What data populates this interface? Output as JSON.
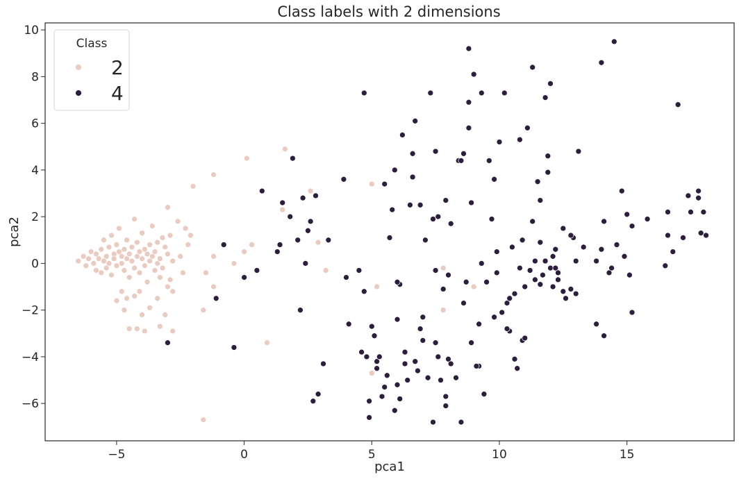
{
  "chart_data": {
    "type": "scatter",
    "title": "Class labels with 2 dimensions",
    "xlabel": "pca1",
    "ylabel": "pca2",
    "xlim": [
      -7.8,
      19.2
    ],
    "ylim": [
      -7.6,
      10.3
    ],
    "xticks": [
      -5,
      0,
      5,
      10,
      15
    ],
    "yticks": [
      -6,
      -4,
      -2,
      0,
      2,
      4,
      6,
      8,
      10
    ],
    "grid": false,
    "legend": {
      "title": "Class",
      "placement": "top-left"
    },
    "series": [
      {
        "name": "2",
        "color": "#ebcbc0",
        "points": [
          [
            -6.5,
            0.1
          ],
          [
            -6.3,
            0.3
          ],
          [
            -6.2,
            -0.1
          ],
          [
            -6.1,
            0.2
          ],
          [
            -6.0,
            0.5
          ],
          [
            -5.9,
            0.0
          ],
          [
            -5.8,
            0.4
          ],
          [
            -5.8,
            -0.3
          ],
          [
            -5.7,
            0.2
          ],
          [
            -5.6,
            0.6
          ],
          [
            -5.6,
            -0.4
          ],
          [
            -5.5,
            0.1
          ],
          [
            -5.5,
            1.0
          ],
          [
            -5.4,
            0.3
          ],
          [
            -5.4,
            -0.2
          ],
          [
            -5.3,
            0.7
          ],
          [
            -5.3,
            0.0
          ],
          [
            -5.2,
            1.2
          ],
          [
            -5.2,
            -0.5
          ],
          [
            -5.1,
            0.4
          ],
          [
            -5.1,
            0.2
          ],
          [
            -5.0,
            0.8
          ],
          [
            -5.0,
            -0.1
          ],
          [
            -4.9,
            0.5
          ],
          [
            -4.9,
            1.5
          ],
          [
            -4.8,
            0.0
          ],
          [
            -4.8,
            0.3
          ],
          [
            -4.7,
            0.6
          ],
          [
            -4.7,
            -0.3
          ],
          [
            -4.6,
            0.2
          ],
          [
            -4.6,
            1.0
          ],
          [
            -4.5,
            0.4
          ],
          [
            -4.5,
            -0.6
          ],
          [
            -4.4,
            0.7
          ],
          [
            -4.4,
            0.1
          ],
          [
            -4.3,
            1.9
          ],
          [
            -4.3,
            -0.2
          ],
          [
            -4.2,
            0.3
          ],
          [
            -4.2,
            0.9
          ],
          [
            -4.1,
            0.5
          ],
          [
            -4.1,
            -0.4
          ],
          [
            -4.0,
            0.2
          ],
          [
            -4.0,
            1.3
          ],
          [
            -3.9,
            0.6
          ],
          [
            -3.9,
            -0.1
          ],
          [
            -3.8,
            0.4
          ],
          [
            -3.8,
            -0.8
          ],
          [
            -3.7,
            0.8
          ],
          [
            -3.7,
            0.1
          ],
          [
            -3.6,
            0.3
          ],
          [
            -3.6,
            1.6
          ],
          [
            -3.5,
            -0.3
          ],
          [
            -3.5,
            0.5
          ],
          [
            -3.4,
            0.0
          ],
          [
            -3.4,
            0.9
          ],
          [
            -3.3,
            -0.6
          ],
          [
            -3.3,
            0.2
          ],
          [
            -3.2,
            1.1
          ],
          [
            -3.2,
            -0.2
          ],
          [
            -3.1,
            0.7
          ],
          [
            -3.0,
            2.4
          ],
          [
            -3.0,
            0.4
          ],
          [
            -2.9,
            -0.7
          ],
          [
            -2.9,
            1.2
          ],
          [
            -2.8,
            0.1
          ],
          [
            -2.8,
            -1.2
          ],
          [
            -2.6,
            1.8
          ],
          [
            -2.5,
            0.3
          ],
          [
            -2.4,
            -0.4
          ],
          [
            -2.3,
            1.5
          ],
          [
            -2.2,
            0.8
          ],
          [
            -2.1,
            1.2
          ],
          [
            -4.6,
            -1.5
          ],
          [
            -4.5,
            -2.8
          ],
          [
            -4.2,
            -2.8
          ],
          [
            -3.9,
            -2.9
          ],
          [
            -4.8,
            -1.2
          ],
          [
            -4.7,
            -2.0
          ],
          [
            -4.3,
            -1.4
          ],
          [
            -4.1,
            -1.2
          ],
          [
            -3.7,
            -1.9
          ],
          [
            -3.4,
            -1.5
          ],
          [
            -3.3,
            -2.7
          ],
          [
            -3.1,
            -2.2
          ],
          [
            -2.8,
            -2.9
          ],
          [
            -3.0,
            -1.0
          ],
          [
            -5.0,
            -1.6
          ],
          [
            -4.0,
            -2.2
          ],
          [
            -2.0,
            3.3
          ],
          [
            -1.6,
            -2.0
          ],
          [
            -1.6,
            -6.7
          ],
          [
            -1.5,
            -0.4
          ],
          [
            -1.2,
            3.8
          ],
          [
            -1.2,
            0.3
          ],
          [
            -1.2,
            -1.0
          ],
          [
            -0.4,
            0.0
          ],
          [
            0.0,
            0.5
          ],
          [
            0.1,
            4.5
          ],
          [
            0.3,
            0.8
          ],
          [
            0.9,
            -3.4
          ],
          [
            1.5,
            2.3
          ],
          [
            1.6,
            4.9
          ],
          [
            2.6,
            3.1
          ],
          [
            2.9,
            0.9
          ],
          [
            3.2,
            -0.3
          ],
          [
            5.0,
            3.4
          ],
          [
            5.2,
            -1.0
          ],
          [
            5.0,
            -4.7
          ],
          [
            7.8,
            -0.2
          ],
          [
            7.8,
            -2.0
          ],
          [
            9.0,
            -1.0
          ]
        ]
      },
      {
        "name": "4",
        "color": "#2d1e3e",
        "points": [
          [
            -3.0,
            -3.4
          ],
          [
            -1.1,
            -1.5
          ],
          [
            -0.8,
            0.8
          ],
          [
            -0.4,
            -3.6
          ],
          [
            0.0,
            -0.6
          ],
          [
            0.5,
            -0.3
          ],
          [
            0.7,
            3.1
          ],
          [
            1.3,
            0.5
          ],
          [
            1.4,
            0.8
          ],
          [
            1.5,
            2.6
          ],
          [
            1.8,
            2.0
          ],
          [
            1.9,
            4.5
          ],
          [
            2.1,
            1.0
          ],
          [
            2.2,
            -2.0
          ],
          [
            2.3,
            2.8
          ],
          [
            2.4,
            0.0
          ],
          [
            2.5,
            1.4
          ],
          [
            2.6,
            1.8
          ],
          [
            2.7,
            -5.9
          ],
          [
            2.8,
            2.9
          ],
          [
            2.9,
            -5.6
          ],
          [
            3.1,
            -4.3
          ],
          [
            3.3,
            1.0
          ],
          [
            3.9,
            3.6
          ],
          [
            4.0,
            -0.6
          ],
          [
            4.1,
            -2.6
          ],
          [
            4.5,
            -0.3
          ],
          [
            4.6,
            -3.8
          ],
          [
            4.7,
            -1.2
          ],
          [
            4.7,
            7.3
          ],
          [
            4.8,
            -4.0
          ],
          [
            4.9,
            -6.6
          ],
          [
            5.0,
            -2.7
          ],
          [
            5.2,
            -4.2
          ],
          [
            5.4,
            -5.7
          ],
          [
            5.5,
            3.4
          ],
          [
            5.6,
            -4.8
          ],
          [
            5.8,
            2.3
          ],
          [
            5.9,
            4.0
          ],
          [
            6.0,
            -5.2
          ],
          [
            6.1,
            -0.9
          ],
          [
            6.2,
            5.5
          ],
          [
            6.3,
            -3.8
          ],
          [
            6.5,
            2.5
          ],
          [
            6.6,
            4.7
          ],
          [
            6.7,
            6.1
          ],
          [
            6.8,
            -4.6
          ],
          [
            6.9,
            -2.8
          ],
          [
            7.0,
            -3.3
          ],
          [
            7.1,
            1.0
          ],
          [
            7.2,
            -4.9
          ],
          [
            7.3,
            7.3
          ],
          [
            7.4,
            1.9
          ],
          [
            7.5,
            4.8
          ],
          [
            7.6,
            2.0
          ],
          [
            7.7,
            -5.0
          ],
          [
            7.8,
            -1.1
          ],
          [
            7.9,
            2.7
          ],
          [
            8.0,
            -4.1
          ],
          [
            8.1,
            1.7
          ],
          [
            8.3,
            -4.9
          ],
          [
            8.4,
            4.4
          ],
          [
            8.5,
            -6.8
          ],
          [
            8.6,
            4.7
          ],
          [
            8.7,
            -0.8
          ],
          [
            8.8,
            5.8
          ],
          [
            8.8,
            9.2
          ],
          [
            8.9,
            2.6
          ],
          [
            9.0,
            8.1
          ],
          [
            9.2,
            -2.6
          ],
          [
            9.3,
            7.3
          ],
          [
            9.4,
            -5.6
          ],
          [
            9.5,
            -0.8
          ],
          [
            9.6,
            4.4
          ],
          [
            9.7,
            1.9
          ],
          [
            9.8,
            -2.3
          ],
          [
            9.9,
            0.5
          ],
          [
            10.0,
            5.2
          ],
          [
            10.1,
            -2.1
          ],
          [
            10.2,
            7.3
          ],
          [
            10.3,
            -1.7
          ],
          [
            10.4,
            -2.9
          ],
          [
            10.5,
            0.7
          ],
          [
            10.6,
            -1.3
          ],
          [
            10.7,
            -4.5
          ],
          [
            10.8,
            5.3
          ],
          [
            10.9,
            1.0
          ],
          [
            11.0,
            -1.0
          ],
          [
            11.1,
            5.8
          ],
          [
            11.2,
            -0.3
          ],
          [
            11.3,
            8.4
          ],
          [
            11.4,
            -0.7
          ],
          [
            11.5,
            3.5
          ],
          [
            11.6,
            0.9
          ],
          [
            11.7,
            -0.5
          ],
          [
            11.8,
            7.1
          ],
          [
            11.9,
            4.6
          ],
          [
            12.0,
            7.7
          ],
          [
            12.1,
            -1.0
          ],
          [
            12.2,
            0.6
          ],
          [
            12.3,
            -0.7
          ],
          [
            12.5,
            -1.2
          ],
          [
            12.8,
            -1.1
          ],
          [
            12.9,
            1.1
          ],
          [
            13.0,
            0.1
          ],
          [
            13.1,
            4.8
          ],
          [
            13.8,
            0.1
          ],
          [
            13.8,
            -2.6
          ],
          [
            14.0,
            0.6
          ],
          [
            14.0,
            8.6
          ],
          [
            14.1,
            -3.1
          ],
          [
            14.1,
            1.8
          ],
          [
            14.3,
            -0.4
          ],
          [
            14.4,
            -0.2
          ],
          [
            14.5,
            9.5
          ],
          [
            14.6,
            0.8
          ],
          [
            14.8,
            3.1
          ],
          [
            14.9,
            0.3
          ],
          [
            15.0,
            2.1
          ],
          [
            15.1,
            -0.5
          ],
          [
            15.2,
            1.6
          ],
          [
            15.2,
            -2.1
          ],
          [
            15.8,
            1.9
          ],
          [
            16.5,
            -0.1
          ],
          [
            16.6,
            2.2
          ],
          [
            16.6,
            1.2
          ],
          [
            16.8,
            0.5
          ],
          [
            17.0,
            6.8
          ],
          [
            17.2,
            1.1
          ],
          [
            17.4,
            2.9
          ],
          [
            17.5,
            2.2
          ],
          [
            17.8,
            3.1
          ],
          [
            17.8,
            2.8
          ],
          [
            17.9,
            1.3
          ],
          [
            18.0,
            2.2
          ],
          [
            18.1,
            1.2
          ],
          [
            8.8,
            6.9
          ],
          [
            9.8,
            3.6
          ],
          [
            11.9,
            3.9
          ],
          [
            12.5,
            1.5
          ],
          [
            6.9,
            2.5
          ],
          [
            6.0,
            -2.4
          ],
          [
            7.5,
            -3.4
          ],
          [
            8.1,
            -4.3
          ],
          [
            5.3,
            -4.0
          ],
          [
            5.5,
            -5.3
          ],
          [
            6.4,
            -5.0
          ],
          [
            5.9,
            -6.3
          ],
          [
            7.4,
            -6.8
          ],
          [
            7.9,
            -5.7
          ],
          [
            6.7,
            -4.2
          ],
          [
            5.1,
            -3.1
          ],
          [
            6.3,
            -4.3
          ],
          [
            7.6,
            -4.0
          ],
          [
            7.9,
            -6.1
          ],
          [
            8.9,
            -3.4
          ],
          [
            9.2,
            -4.4
          ],
          [
            10.3,
            -2.8
          ],
          [
            10.4,
            -1.5
          ],
          [
            11.4,
            0.1
          ],
          [
            11.6,
            -0.9
          ],
          [
            12.3,
            -0.4
          ],
          [
            12.6,
            -1.5
          ],
          [
            13.0,
            -1.3
          ],
          [
            10.9,
            -3.3
          ],
          [
            9.9,
            -0.4
          ],
          [
            10.8,
            -0.2
          ],
          [
            12.0,
            -0.2
          ],
          [
            11.3,
            1.8
          ],
          [
            12.1,
            0.3
          ],
          [
            6.0,
            -0.8
          ],
          [
            7.5,
            -0.3
          ],
          [
            8.6,
            -1.7
          ],
          [
            9.1,
            -4.4
          ],
          [
            10.6,
            -4.1
          ],
          [
            11.0,
            -3.2
          ],
          [
            12.2,
            -0.2
          ],
          [
            9.3,
            0.0
          ],
          [
            8.5,
            4.4
          ],
          [
            6.1,
            -5.8
          ],
          [
            5.2,
            -4.5
          ],
          [
            4.9,
            -5.9
          ],
          [
            6.6,
            3.7
          ],
          [
            5.7,
            1.1
          ],
          [
            7.0,
            -2.3
          ],
          [
            8.0,
            -0.5
          ],
          [
            11.6,
            2.7
          ],
          [
            12.8,
            1.2
          ],
          [
            13.3,
            0.7
          ],
          [
            11.8,
            0.1
          ]
        ]
      }
    ]
  }
}
